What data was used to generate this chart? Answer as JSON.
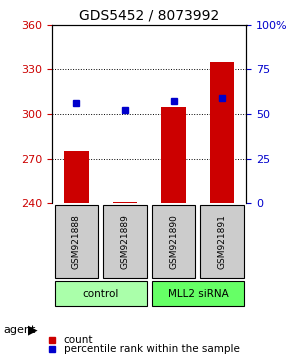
{
  "title": "GDS5452 / 8073992",
  "samples": [
    "GSM921888",
    "GSM921889",
    "GSM921890",
    "GSM921891"
  ],
  "counts": [
    275,
    241,
    305,
    335
  ],
  "percentiles": [
    56,
    52,
    57,
    59
  ],
  "left_ylim": [
    240,
    360
  ],
  "left_yticks": [
    240,
    270,
    300,
    330,
    360
  ],
  "right_ylim": [
    0,
    100
  ],
  "right_yticks": [
    0,
    25,
    50,
    75,
    100
  ],
  "right_yticklabels": [
    "0",
    "25",
    "50",
    "75",
    "100%"
  ],
  "bar_color": "#cc0000",
  "dot_color": "#0000cc",
  "groups": [
    {
      "label": "control",
      "indices": [
        0,
        1
      ],
      "color": "#aaffaa"
    },
    {
      "label": "MLL2 siRNA",
      "indices": [
        2,
        3
      ],
      "color": "#66ff66"
    }
  ],
  "legend_count_label": "count",
  "legend_percentile_label": "percentile rank within the sample",
  "agent_label": "agent",
  "bar_width": 0.5,
  "left_ytick_color": "#cc0000",
  "right_ytick_color": "#0000cc",
  "grid_color": "#000000",
  "sample_box_color": "#cccccc"
}
